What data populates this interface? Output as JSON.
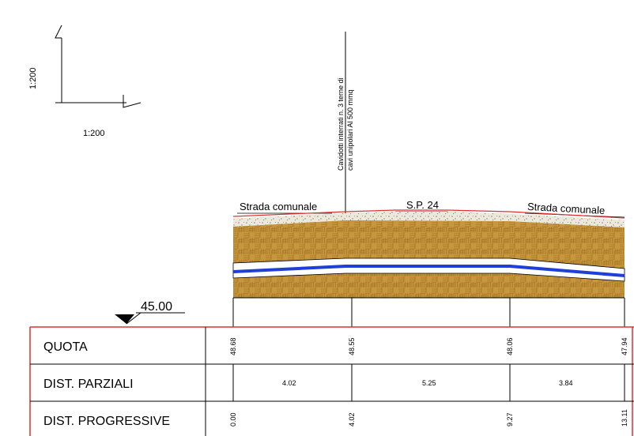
{
  "scale": {
    "vertical": "1:200",
    "horizontal": "1:200"
  },
  "callout": {
    "line1": "Cavidotti interrati n. 3 terne di",
    "line2": "cavi unipolari Al 500 mmq"
  },
  "roads": {
    "left": "Strada comunale",
    "center": "S.P. 24",
    "right": "Strada comunale"
  },
  "datum": "45.00",
  "table": {
    "rows": {
      "quota": "QUOTA",
      "parziali": "DIST. PARZIALI",
      "progressive": "DIST. PROGRESSIVE"
    },
    "quota": [
      "48.68",
      "48.55",
      "48.06",
      "47.94"
    ],
    "parziali": [
      "4.02",
      "5.25",
      "3.84"
    ],
    "progressive": [
      "0.00",
      "4.02",
      "9.27",
      "13.11"
    ]
  },
  "colors": {
    "soil": "#c8963c",
    "gravel": "#e6e2d6",
    "cable": "#1f3fd6",
    "red": "#e03030"
  }
}
